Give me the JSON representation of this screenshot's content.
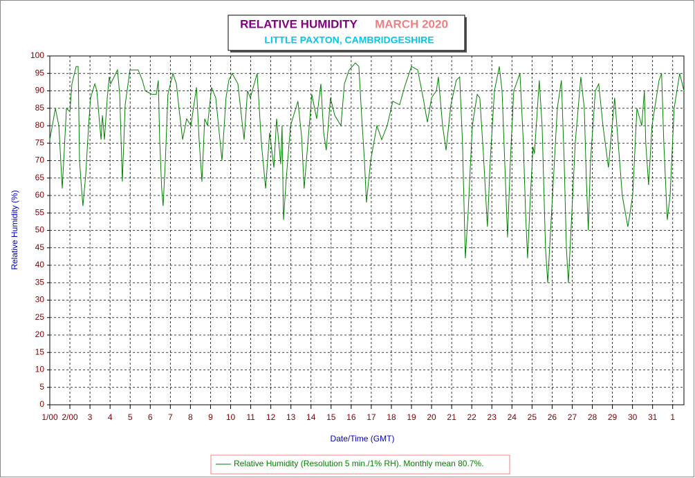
{
  "chart_data": {
    "type": "line",
    "title": "RELATIVE HUMIDITY",
    "title_period": "MARCH 2020",
    "subtitle": "LITTLE PAXTON, CAMBRIDGESHIRE",
    "x_label": "Date/Time (GMT)",
    "y_label": "Relative Humidity (%)",
    "grid": true,
    "xlim": [
      0,
      31.56
    ],
    "ylim": [
      0,
      100
    ],
    "yticks": [
      0,
      5,
      10,
      15,
      20,
      25,
      30,
      35,
      40,
      45,
      50,
      55,
      60,
      65,
      70,
      75,
      80,
      85,
      90,
      95,
      100
    ],
    "xticks": [
      {
        "value": 0,
        "label": "1/00"
      },
      {
        "value": 1,
        "label": "2/00"
      },
      {
        "value": 2,
        "label": "3"
      },
      {
        "value": 3,
        "label": "4"
      },
      {
        "value": 4,
        "label": "5"
      },
      {
        "value": 5,
        "label": "6"
      },
      {
        "value": 6,
        "label": "7"
      },
      {
        "value": 7,
        "label": "8"
      },
      {
        "value": 8,
        "label": "9"
      },
      {
        "value": 9,
        "label": "10"
      },
      {
        "value": 10,
        "label": "11"
      },
      {
        "value": 11,
        "label": "12"
      },
      {
        "value": 12,
        "label": "13"
      },
      {
        "value": 13,
        "label": "14"
      },
      {
        "value": 14,
        "label": "15"
      },
      {
        "value": 15,
        "label": "16"
      },
      {
        "value": 16,
        "label": "17"
      },
      {
        "value": 17,
        "label": "18"
      },
      {
        "value": 18,
        "label": "19"
      },
      {
        "value": 19,
        "label": "20"
      },
      {
        "value": 20,
        "label": "21"
      },
      {
        "value": 21,
        "label": "22"
      },
      {
        "value": 22,
        "label": "23"
      },
      {
        "value": 23,
        "label": "24"
      },
      {
        "value": 24,
        "label": "25"
      },
      {
        "value": 25,
        "label": "26"
      },
      {
        "value": 26,
        "label": "27"
      },
      {
        "value": 27,
        "label": "28"
      },
      {
        "value": 28,
        "label": "29"
      },
      {
        "value": 29,
        "label": "30"
      },
      {
        "value": 30,
        "label": "31"
      },
      {
        "value": 31,
        "label": "1"
      }
    ],
    "x": [
      0,
      0.28,
      0.45,
      0.62,
      0.83,
      1.0,
      1.1,
      1.31,
      1.41,
      1.48,
      1.58,
      1.65,
      1.79,
      1.93,
      2.03,
      2.24,
      2.34,
      2.55,
      2.62,
      2.72,
      2.86,
      2.96,
      3.03,
      3.37,
      3.48,
      3.61,
      3.75,
      3.99,
      4.4,
      4.61,
      4.75,
      5.09,
      5.3,
      5.4,
      5.47,
      5.57,
      5.64,
      5.75,
      5.88,
      6.13,
      6.3,
      6.43,
      6.61,
      6.81,
      7.02,
      7.3,
      7.43,
      7.57,
      7.71,
      7.85,
      8.05,
      8.26,
      8.57,
      8.77,
      8.91,
      9.08,
      9.36,
      9.57,
      9.67,
      9.84,
      9.98,
      10.32,
      10.53,
      10.74,
      10.94,
      11.15,
      11.29,
      11.49,
      11.56,
      11.63,
      11.77,
      11.98,
      12.35,
      12.53,
      12.66,
      12.8,
      13.04,
      13.28,
      13.49,
      13.63,
      13.76,
      13.97,
      14.18,
      14.49,
      14.66,
      14.9,
      15.21,
      15.38,
      15.52,
      15.66,
      15.76,
      15.97,
      16.28,
      16.52,
      16.79,
      17.07,
      17.41,
      17.65,
      18.0,
      18.31,
      18.58,
      18.79,
      19.0,
      19.24,
      19.34,
      19.55,
      19.72,
      19.96,
      20.23,
      20.4,
      20.54,
      20.68,
      20.82,
      21.03,
      21.27,
      21.4,
      21.58,
      21.78,
      21.92,
      22.13,
      22.37,
      22.51,
      22.64,
      22.78,
      22.92,
      23.09,
      23.4,
      23.57,
      23.68,
      23.78,
      23.92,
      24.05,
      24.12,
      24.36,
      24.5,
      24.67,
      24.78,
      25.02,
      25.26,
      25.46,
      25.6,
      25.71,
      25.81,
      25.98,
      26.15,
      26.43,
      26.6,
      26.7,
      26.8,
      26.91,
      27.15,
      27.32,
      27.53,
      27.8,
      28.11,
      28.29,
      28.49,
      28.77,
      29.01,
      29.22,
      29.46,
      29.59,
      29.66,
      29.8,
      29.97,
      30.32,
      30.45,
      30.56,
      30.73,
      30.87,
      31.07,
      31.35,
      31.56
    ],
    "series": [
      {
        "name": "Relative Humidity (Resolution 5 min./1% RH). Monthly mean 80.7%.",
        "color": "#008000",
        "values": [
          76,
          85,
          80,
          62,
          85,
          84,
          92,
          97,
          97,
          70,
          62,
          57,
          66,
          80,
          88,
          92,
          90,
          76,
          83,
          76,
          88,
          94,
          92,
          96,
          89,
          64,
          86,
          96,
          96,
          93,
          90,
          89,
          89,
          93,
          76,
          62,
          57,
          70,
          89,
          95,
          92,
          85,
          76,
          82,
          80,
          91,
          76,
          64,
          82,
          80,
          91,
          88,
          70,
          88,
          93,
          95,
          92,
          81,
          76,
          90,
          88,
          95,
          75,
          62,
          78,
          68,
          82,
          69,
          80,
          53,
          65,
          80,
          87,
          77,
          62,
          72,
          89,
          82,
          92,
          78,
          73,
          88,
          83,
          80,
          92,
          96,
          98,
          97,
          83,
          70,
          58,
          70,
          80,
          76,
          80,
          87,
          86,
          91,
          97,
          96,
          88,
          81,
          88,
          90,
          94,
          80,
          73,
          86,
          93,
          94,
          75,
          42,
          55,
          80,
          89,
          88,
          72,
          51,
          70,
          90,
          97,
          90,
          70,
          48,
          70,
          90,
          95,
          75,
          55,
          42,
          60,
          74,
          72,
          93,
          80,
          45,
          35,
          60,
          85,
          93,
          70,
          45,
          35,
          55,
          75,
          94,
          85,
          65,
          50,
          70,
          90,
          92,
          80,
          68,
          88,
          75,
          60,
          51,
          60,
          85,
          80,
          90,
          75,
          63,
          80,
          93,
          95,
          75,
          53,
          60,
          85,
          95,
          90
        ]
      }
    ]
  }
}
